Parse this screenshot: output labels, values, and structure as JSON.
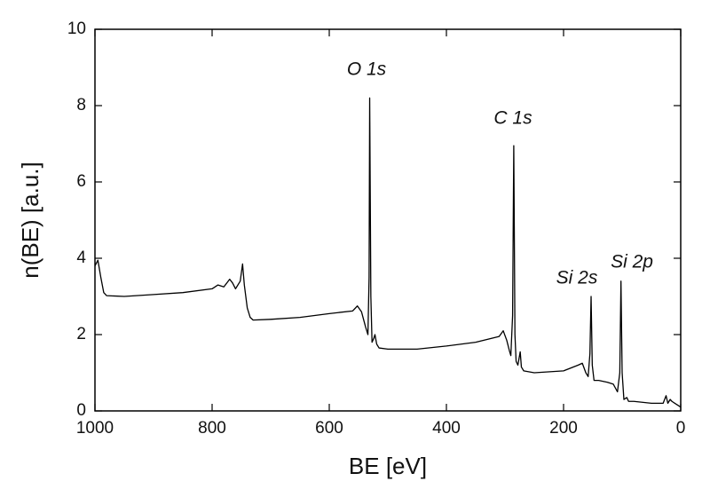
{
  "chart_data": {
    "type": "line",
    "xlabel": "BE [eV]",
    "ylabel": "n(BE)  [a.u.]",
    "annotations": [
      "O 1s",
      "C 1s",
      "Si 2s",
      "Si 2p"
    ],
    "color": "#000000",
    "xlim": [
      1000,
      0
    ],
    "xticks": [
      1000,
      800,
      600,
      400,
      200,
      0
    ],
    "ylim": [
      0,
      10
    ],
    "yticks": [
      0,
      2,
      4,
      6,
      8,
      10
    ],
    "grid": false,
    "x": [
      1000,
      995,
      990,
      985,
      980,
      950,
      900,
      850,
      800,
      790,
      780,
      770,
      765,
      760,
      752,
      748,
      745,
      740,
      735,
      730,
      700,
      650,
      600,
      560,
      552,
      545,
      538,
      534,
      532,
      531,
      529,
      527,
      524,
      522,
      519,
      515,
      500,
      450,
      400,
      350,
      310,
      303,
      297,
      292,
      290,
      287,
      285,
      283,
      281,
      278,
      274,
      272,
      268,
      250,
      200,
      175,
      168,
      162,
      158,
      155,
      153,
      151,
      148,
      140,
      125,
      115,
      108,
      104,
      102,
      100,
      97,
      92,
      89,
      80,
      50,
      30,
      25,
      22,
      18,
      15,
      10,
      5,
      0
    ],
    "values": [
      3.8,
      3.95,
      3.5,
      3.1,
      3.02,
      3.0,
      3.05,
      3.1,
      3.2,
      3.3,
      3.25,
      3.45,
      3.35,
      3.2,
      3.4,
      3.85,
      3.3,
      2.7,
      2.45,
      2.38,
      2.4,
      2.45,
      2.55,
      2.62,
      2.75,
      2.6,
      2.2,
      2.0,
      3.5,
      8.2,
      3.0,
      1.8,
      1.9,
      2.0,
      1.75,
      1.65,
      1.62,
      1.62,
      1.7,
      1.8,
      1.95,
      2.1,
      1.85,
      1.55,
      1.45,
      2.5,
      6.95,
      2.0,
      1.3,
      1.2,
      1.55,
      1.15,
      1.05,
      1.0,
      1.05,
      1.2,
      1.25,
      1.0,
      0.9,
      1.5,
      3.0,
      1.2,
      0.8,
      0.8,
      0.75,
      0.7,
      0.5,
      1.0,
      3.4,
      1.0,
      0.3,
      0.35,
      0.25,
      0.25,
      0.2,
      0.2,
      0.4,
      0.2,
      0.3,
      0.25,
      0.2,
      0.15,
      0.1
    ]
  }
}
